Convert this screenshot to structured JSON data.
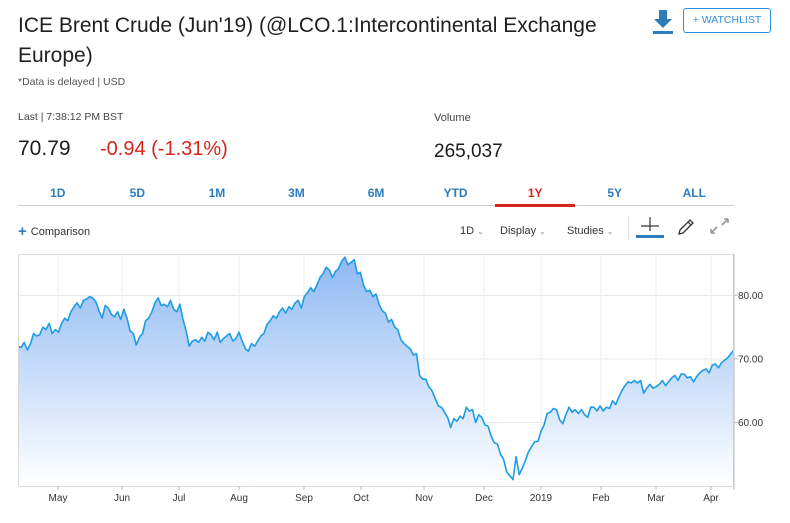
{
  "header": {
    "title": "ICE Brent Crude (Jun'19) (@LCO.1:Intercontinental Exchange Europe)",
    "delay_note": "*Data is delayed | USD",
    "watchlist_label": "+ WATCHLIST"
  },
  "quote": {
    "last_label": "Last | 7:38:12 PM BST",
    "price": "70.79",
    "change": "-0.94 (-1.31%)",
    "volume_label": "Volume",
    "volume": "265,037"
  },
  "tabs": [
    {
      "label": "1D"
    },
    {
      "label": "5D"
    },
    {
      "label": "1M"
    },
    {
      "label": "3M"
    },
    {
      "label": "6M"
    },
    {
      "label": "YTD"
    },
    {
      "label": "1Y",
      "active": true
    },
    {
      "label": "5Y"
    },
    {
      "label": "ALL"
    }
  ],
  "toolbar": {
    "comparison_label": "Comparison",
    "interval_label": "1D",
    "display_label": "Display",
    "studies_label": "Studies"
  },
  "icons": [
    "download-icon",
    "plus-icon",
    "crosshair-icon",
    "pencil-icon",
    "expand-icon",
    "caret-down-icon"
  ],
  "colors": {
    "accent": "#2d7dbd",
    "negative": "#d7241c",
    "line": "#1e9be5",
    "fill": "#9cc3f5"
  },
  "chart_data": {
    "type": "area",
    "series": [
      {
        "values": [
          72.0,
          71.8,
          72.6,
          71.4,
          72.4,
          74.0,
          73.6,
          73.8,
          75.0,
          74.6,
          75.6,
          74.0,
          74.6,
          74.2,
          75.6,
          76.4,
          76.0,
          77.4,
          78.2,
          78.8,
          78.0,
          79.2,
          79.4,
          79.8,
          79.6,
          79.0,
          77.6,
          76.4,
          78.4,
          78.0,
          77.0,
          76.6,
          77.4,
          76.2,
          77.8,
          76.4,
          74.4,
          74.0,
          72.2,
          73.4,
          74.0,
          76.0,
          76.4,
          77.4,
          78.8,
          79.6,
          78.4,
          78.6,
          78.2,
          79.2,
          77.8,
          77.4,
          78.6,
          76.2,
          74.4,
          72.0,
          72.8,
          73.0,
          72.6,
          73.4,
          72.8,
          74.2,
          73.8,
          73.0,
          74.2,
          72.6,
          73.2,
          73.6,
          74.0,
          72.8,
          73.2,
          74.2,
          72.8,
          71.6,
          71.2,
          72.4,
          72.0,
          72.8,
          73.6,
          74.0,
          75.4,
          76.0,
          76.8,
          76.4,
          77.4,
          78.0,
          77.2,
          78.2,
          77.8,
          78.8,
          79.2,
          78.0,
          79.8,
          80.4,
          81.2,
          80.6,
          81.6,
          82.8,
          83.4,
          84.4,
          84.0,
          82.8,
          83.8,
          84.2,
          85.4,
          86.0,
          84.8,
          85.2,
          85.6,
          83.4,
          83.6,
          81.6,
          80.6,
          80.8,
          79.8,
          80.2,
          78.6,
          77.6,
          77.2,
          75.8,
          76.2,
          75.0,
          74.6,
          73.0,
          72.4,
          72.0,
          71.6,
          70.6,
          70.8,
          67.4,
          66.8,
          66.8,
          65.6,
          65.0,
          63.8,
          62.6,
          62.4,
          61.6,
          60.8,
          59.2,
          60.6,
          60.2,
          61.0,
          60.6,
          62.4,
          61.8,
          62.0,
          60.0,
          61.2,
          60.8,
          59.6,
          59.4,
          57.8,
          56.8,
          56.6,
          55.0,
          54.2,
          52.2,
          51.6,
          51.0,
          54.6,
          51.8,
          52.8,
          54.0,
          55.4,
          56.2,
          57.0,
          57.0,
          58.6,
          59.6,
          61.4,
          61.6,
          62.2,
          62.0,
          60.4,
          59.8,
          61.2,
          62.4,
          61.6,
          62.0,
          61.4,
          62.0,
          61.2,
          60.8,
          62.4,
          62.4,
          61.8,
          62.6,
          61.8,
          62.4,
          62.2,
          63.4,
          62.8,
          64.0,
          65.0,
          65.8,
          66.4,
          66.2,
          66.6,
          66.2,
          66.6,
          64.6,
          65.4,
          66.0,
          65.4,
          65.6,
          66.0,
          66.6,
          65.8,
          66.4,
          67.0,
          67.4,
          66.6,
          67.6,
          67.6,
          67.0,
          67.2,
          66.4,
          67.2,
          67.8,
          68.2,
          68.4,
          67.8,
          69.0,
          69.2,
          68.6,
          69.4,
          69.8,
          70.2,
          70.8,
          71.4
        ]
      }
    ],
    "x_ticks": [
      "May",
      "Jun",
      "Jul",
      "Aug",
      "Sep",
      "Oct",
      "Nov",
      "Dec",
      "2019",
      "Feb",
      "Mar",
      "Apr"
    ],
    "y_ticks": [
      "60.00",
      "70.00",
      "80.00"
    ],
    "ylim": [
      50,
      86.5
    ],
    "grid": true
  }
}
